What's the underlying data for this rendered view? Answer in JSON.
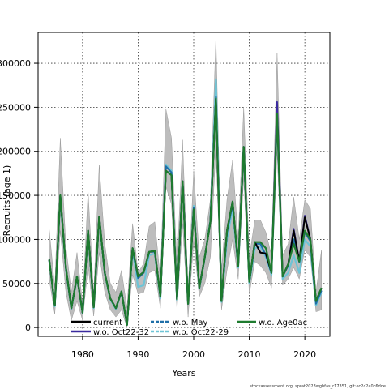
{
  "chart_data": {
    "type": "line",
    "xlabel": "Years",
    "ylabel": "Recruits (age 1)",
    "xlim": [
      1972,
      2024.5
    ],
    "ylim": [
      -10000,
      335000
    ],
    "x_ticks": [
      1980,
      1990,
      2000,
      2010,
      2020
    ],
    "y_ticks": [
      0,
      50000,
      100000,
      150000,
      200000,
      250000,
      300000
    ],
    "grid": true,
    "legend_position": "bottom",
    "footer": "stockassessment.org, sprat2023wgbfas_r17351, git:ec2c2a0c6dde",
    "colors": {
      "current": "#000000",
      "w.o. Oct22-32": "#3a2a9e",
      "w.o. May": "#1f6fa8",
      "w.o. Oct22-29": "#6ec4d6",
      "w.o. Age0ac": "#1e7b2f",
      "band": "#bdbdbd",
      "band_light": "#8fd0e0"
    },
    "x": [
      1974,
      1975,
      1976,
      1977,
      1978,
      1979,
      1980,
      1981,
      1982,
      1983,
      1984,
      1985,
      1986,
      1987,
      1988,
      1989,
      1990,
      1991,
      1992,
      1993,
      1994,
      1995,
      1996,
      1997,
      1998,
      1999,
      2000,
      2001,
      2002,
      2003,
      2004,
      2005,
      2006,
      2007,
      2008,
      2009,
      2010,
      2011,
      2012,
      2013,
      2014,
      2015,
      2016,
      2017,
      2018,
      2019,
      2020,
      2021,
      2022,
      2023
    ],
    "band_upper": [
      112000,
      45000,
      215000,
      92000,
      40000,
      85000,
      27000,
      155000,
      38000,
      185000,
      95000,
      50000,
      40000,
      65000,
      22000,
      118000,
      62000,
      73000,
      115000,
      120000,
      55000,
      248000,
      215000,
      70000,
      213000,
      42000,
      178000,
      80000,
      100000,
      145000,
      330000,
      65000,
      145000,
      190000,
      100000,
      250000,
      80000,
      122000,
      122000,
      108000,
      82000,
      312000,
      82000,
      95000,
      148000,
      100000,
      145000,
      135000,
      40000,
      88000
    ],
    "band_lower": [
      55000,
      15000,
      110000,
      40000,
      8000,
      30000,
      8000,
      70000,
      13000,
      85000,
      40000,
      20000,
      12000,
      20000,
      0,
      60000,
      38000,
      40000,
      62000,
      65000,
      22000,
      160000,
      140000,
      20000,
      118000,
      12000,
      98000,
      35000,
      50000,
      80000,
      205000,
      20000,
      65000,
      100000,
      55000,
      170000,
      38000,
      75000,
      70000,
      62000,
      45000,
      200000,
      48000,
      55000,
      68000,
      55000,
      88000,
      80000,
      18000,
      20000
    ],
    "series": [
      {
        "name": "current",
        "values": [
          77000,
          25000,
          150000,
          68000,
          22000,
          58000,
          17000,
          110000,
          23000,
          126000,
          62000,
          33000,
          22000,
          41000,
          3000,
          90000,
          58000,
          63000,
          86000,
          87000,
          35000,
          178000,
          173000,
          32000,
          166000,
          27000,
          134000,
          45000,
          80000,
          120000,
          260000,
          30000,
          110000,
          143000,
          70000,
          205000,
          52000,
          97000,
          85000,
          84000,
          62000,
          243000,
          58000,
          72000,
          110000,
          75000,
          125000,
          100000,
          30000,
          45000
        ]
      },
      {
        "name": "w.o. Oct22-32",
        "values": [
          77000,
          25000,
          150000,
          68000,
          22000,
          58000,
          17000,
          110000,
          23000,
          126000,
          62000,
          33000,
          22000,
          41000,
          3000,
          90000,
          58000,
          63000,
          86000,
          87000,
          35000,
          178000,
          173000,
          32000,
          166000,
          27000,
          134000,
          45000,
          80000,
          120000,
          260000,
          30000,
          110000,
          143000,
          70000,
          205000,
          52000,
          97000,
          85000,
          84000,
          62000,
          256000,
          58000,
          72000,
          112000,
          75000,
          127000,
          100000,
          30000,
          45000
        ]
      },
      {
        "name": "w.o. May",
        "values": [
          77000,
          25000,
          149000,
          67000,
          22000,
          58000,
          17000,
          109000,
          23000,
          125000,
          62000,
          33000,
          22000,
          41000,
          3000,
          89000,
          56000,
          62000,
          86000,
          86000,
          35000,
          183000,
          176000,
          32000,
          166000,
          27000,
          136000,
          45000,
          80000,
          121000,
          262000,
          30000,
          108000,
          140000,
          70000,
          204000,
          52000,
          95000,
          95000,
          82000,
          62000,
          243000,
          58000,
          70000,
          100000,
          74000,
          108000,
          98000,
          27000,
          42000
        ]
      },
      {
        "name": "w.o. Oct22-29",
        "values": [
          76000,
          24000,
          148000,
          66000,
          21000,
          57000,
          16000,
          108000,
          22000,
          124000,
          61000,
          32000,
          21000,
          40000,
          3000,
          88000,
          46000,
          48000,
          82000,
          84000,
          33000,
          185000,
          178000,
          31000,
          166000,
          27000,
          138000,
          44000,
          79000,
          122000,
          282000,
          29000,
          100000,
          135000,
          68000,
          205000,
          50000,
          90000,
          92000,
          80000,
          60000,
          240000,
          55000,
          62000,
          82000,
          62000,
          100000,
          92000,
          25000,
          40000
        ]
      },
      {
        "name": "w.o. Age0ac",
        "values": [
          77000,
          25000,
          150000,
          68000,
          22000,
          58000,
          17000,
          110000,
          23000,
          126000,
          62000,
          33000,
          22000,
          41000,
          3000,
          90000,
          58000,
          63000,
          86000,
          87000,
          35000,
          178000,
          173000,
          32000,
          166000,
          27000,
          134000,
          45000,
          80000,
          120000,
          260000,
          30000,
          110000,
          143000,
          70000,
          205000,
          52000,
          97000,
          97000,
          90000,
          62000,
          243000,
          58000,
          72000,
          95000,
          75000,
          110000,
          100000,
          30000,
          45000
        ]
      }
    ],
    "legend": [
      {
        "label": "current",
        "color": "#000000",
        "dash": "solid"
      },
      {
        "label": "w.o. May",
        "color": "#1f6fa8",
        "dash": "dashed"
      },
      {
        "label": "w.o. Age0ac",
        "color": "#1e7b2f",
        "dash": "solid"
      },
      {
        "label": "w.o. Oct22-32",
        "color": "#3a2a9e",
        "dash": "solid"
      },
      {
        "label": "w.o. Oct22-29",
        "color": "#6ec4d6",
        "dash": "dashed"
      }
    ]
  }
}
